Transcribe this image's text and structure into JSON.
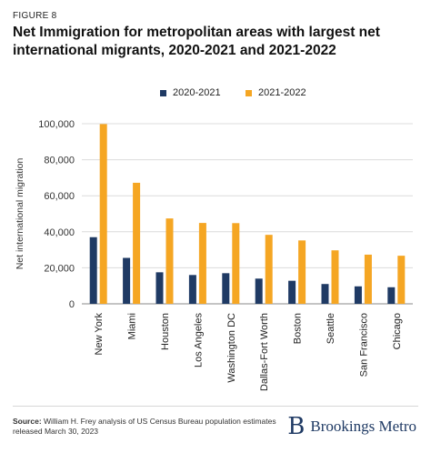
{
  "figure_label": "FIGURE 8",
  "title": "Net Immigration for metropolitan areas with largest net international migrants, 2020-2021 and 2021-2022",
  "source_label": "Source:",
  "source_text": "William H. Frey analysis of US Census Bureau population estimates released March 30, 2023",
  "logo_mark": "B",
  "logo_text": "Brookings Metro",
  "colors": {
    "series_2020": "#1f3a64",
    "series_2021": "#f5a623"
  },
  "chart_data": {
    "type": "bar",
    "title": "Net Immigration for metropolitan areas with largest net international migrants, 2020-2021 and 2021-2022",
    "xlabel": "",
    "ylabel": "Net international migration",
    "ylim": [
      0,
      100000
    ],
    "yticks": [
      0,
      20000,
      40000,
      60000,
      80000,
      100000
    ],
    "ytick_labels": [
      "0",
      "20,000",
      "40,000",
      "60,000",
      "80,000",
      "100,000"
    ],
    "grid": true,
    "legend": "top",
    "categories": [
      "New York",
      "Miami",
      "Houston",
      "Los Angeles",
      "Washington DC",
      "Dallas-Fort Worth",
      "Boston",
      "Seattle",
      "San Francisco",
      "Chicago"
    ],
    "series": [
      {
        "name": "2020-2021",
        "color": "#1f3a64",
        "values": [
          37000,
          25500,
          17500,
          16000,
          17000,
          14000,
          12800,
          11000,
          9700,
          9200
        ]
      },
      {
        "name": "2021-2022",
        "color": "#f5a623",
        "values": [
          99800,
          67200,
          47400,
          44900,
          44800,
          38300,
          35200,
          29700,
          27300,
          26700
        ]
      }
    ]
  }
}
